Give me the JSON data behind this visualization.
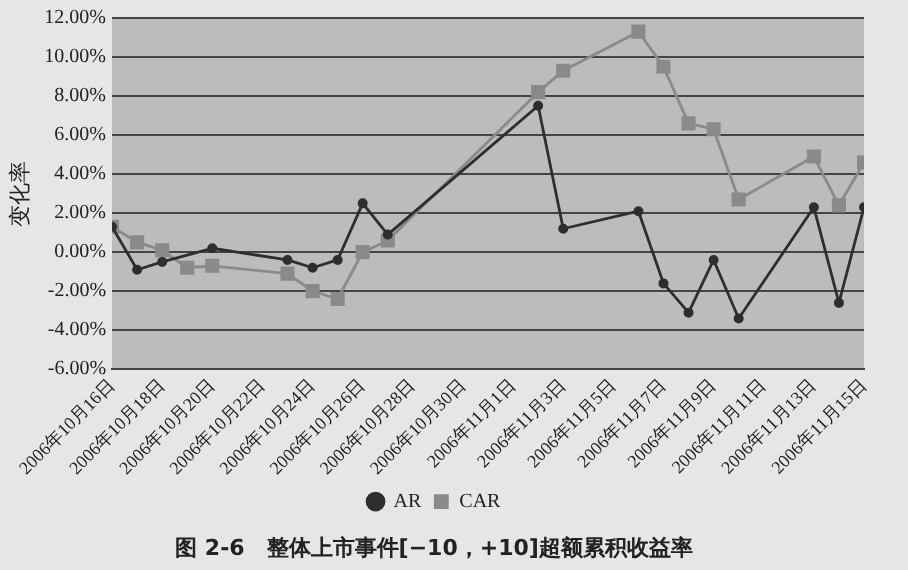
{
  "chart_data": {
    "type": "line",
    "title": "图 2-6　整体上市事件[−10，+10]超额累积收益率",
    "ylabel": "变化率",
    "x": [
      "2006-10-16",
      "2006-10-17",
      "2006-10-18",
      "2006-10-19",
      "2006-10-20",
      "2006-10-23",
      "2006-10-24",
      "2006-10-25",
      "2006-10-26",
      "2006-10-27",
      "2006-11-02",
      "2006-11-03",
      "2006-11-06",
      "2006-11-07",
      "2006-11-08",
      "2006-11-09",
      "2006-11-10",
      "2006-11-13",
      "2006-11-14",
      "2006-11-15"
    ],
    "series": [
      {
        "name": "AR",
        "color": "#2e2e2e",
        "marker": "circle",
        "values": [
          1.3,
          -0.9,
          -0.5,
          null,
          0.2,
          -0.4,
          -0.8,
          -0.4,
          2.5,
          0.9,
          7.5,
          1.2,
          2.1,
          -1.6,
          -3.1,
          -0.4,
          -3.4,
          2.3,
          -2.6,
          2.3
        ]
      },
      {
        "name": "CAR",
        "color": "#8a8a8a",
        "marker": "square",
        "values": [
          1.3,
          0.5,
          0.1,
          -0.8,
          -0.7,
          -1.1,
          -2.0,
          -2.4,
          0.0,
          0.6,
          8.2,
          9.3,
          11.3,
          9.5,
          6.6,
          6.3,
          2.7,
          4.9,
          2.4,
          4.6
        ]
      }
    ],
    "xlim": [
      "2006-10-16",
      "2006-11-15"
    ],
    "xticks": [
      {
        "value": "2006-10-16",
        "label": "2006年10月16日"
      },
      {
        "value": "2006-10-18",
        "label": "2006年10月18日"
      },
      {
        "value": "2006-10-20",
        "label": "2006年10月20日"
      },
      {
        "value": "2006-10-22",
        "label": "2006年10月22日"
      },
      {
        "value": "2006-10-24",
        "label": "2006年10月24日"
      },
      {
        "value": "2006-10-26",
        "label": "2006年10月26日"
      },
      {
        "value": "2006-10-28",
        "label": "2006年10月28日"
      },
      {
        "value": "2006-10-30",
        "label": "2006年10月30日"
      },
      {
        "value": "2006-11-01",
        "label": "2006年11月1日"
      },
      {
        "value": "2006-11-03",
        "label": "2006年11月3日"
      },
      {
        "value": "2006-11-05",
        "label": "2006年11月5日"
      },
      {
        "value": "2006-11-07",
        "label": "2006年11月7日"
      },
      {
        "value": "2006-11-09",
        "label": "2006年11月9日"
      },
      {
        "value": "2006-11-11",
        "label": "2006年11月11日"
      },
      {
        "value": "2006-11-13",
        "label": "2006年11月13日"
      },
      {
        "value": "2006-11-15",
        "label": "2006年11月15日"
      }
    ],
    "ylim": [
      -6,
      12
    ],
    "yticks": [
      {
        "value": -6,
        "label": "-6.00%"
      },
      {
        "value": -4,
        "label": "-4.00%"
      },
      {
        "value": -2,
        "label": "-2.00%"
      },
      {
        "value": 0,
        "label": "0.00%"
      },
      {
        "value": 2,
        "label": "2.00%"
      },
      {
        "value": 4,
        "label": "4.00%"
      },
      {
        "value": 6,
        "label": "6.00%"
      },
      {
        "value": 8,
        "label": "8.00%"
      },
      {
        "value": 10,
        "label": "10.00%"
      },
      {
        "value": 12,
        "label": "12.00%"
      }
    ],
    "grid": "y",
    "legend": "bottom",
    "line_style": "solid"
  }
}
